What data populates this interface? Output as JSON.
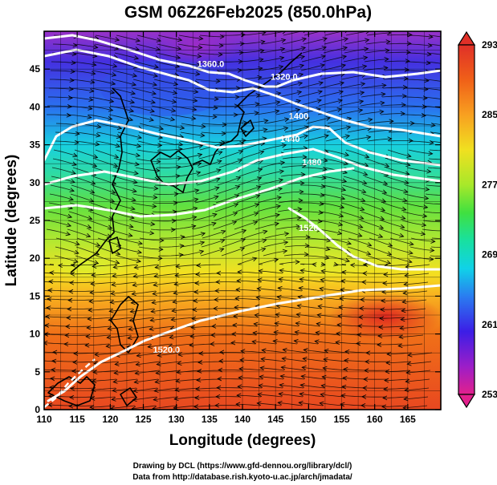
{
  "title": "GSM 06Z26Feb2025 (850.0hPa)",
  "x_axis": {
    "label": "Longitude (degrees)",
    "range": [
      110,
      170
    ],
    "ticks": [
      "110",
      "115",
      "120",
      "125",
      "130",
      "135",
      "140",
      "145",
      "150",
      "155",
      "160",
      "165"
    ]
  },
  "y_axis": {
    "label": "Latitude  (degrees)",
    "range": [
      0,
      50
    ],
    "ticks": [
      "0",
      "5",
      "10",
      "15",
      "20",
      "25",
      "30",
      "35",
      "40",
      "45"
    ]
  },
  "colorbar": {
    "min": 253,
    "max": 293,
    "labels": [
      "293",
      "285",
      "277",
      "269",
      "261",
      "253"
    ],
    "colors": [
      "#e2208c",
      "#9c1ec8",
      "#3c1ee6",
      "#2a7cf0",
      "#10d2e8",
      "#18e0a0",
      "#40e040",
      "#a8e82a",
      "#f0e020",
      "#f8a020",
      "#f06018",
      "#e03028"
    ]
  },
  "contours": [
    {
      "label": "1360.0",
      "lon": 135.2,
      "lat": 45.3
    },
    {
      "label": "1320.0",
      "lon": 146.3,
      "lat": 43.6
    },
    {
      "label": "1400",
      "lon": 148.5,
      "lat": 38.4
    },
    {
      "label": "1440",
      "lon": 147.2,
      "lat": 35.4
    },
    {
      "label": "1480",
      "lon": 150.5,
      "lat": 32.3
    },
    {
      "label": "1520",
      "lon": 150.0,
      "lat": 23.6
    },
    {
      "label": "1520.0",
      "lon": 128.5,
      "lat": 7.5
    }
  ],
  "credits": {
    "line1": "Drawing by DCL (https://www.gfd-dennou.org/library/dcl/)",
    "line2": "Data from http://database.rish.kyoto-u.ac.jp/arch/jmadata/"
  }
}
